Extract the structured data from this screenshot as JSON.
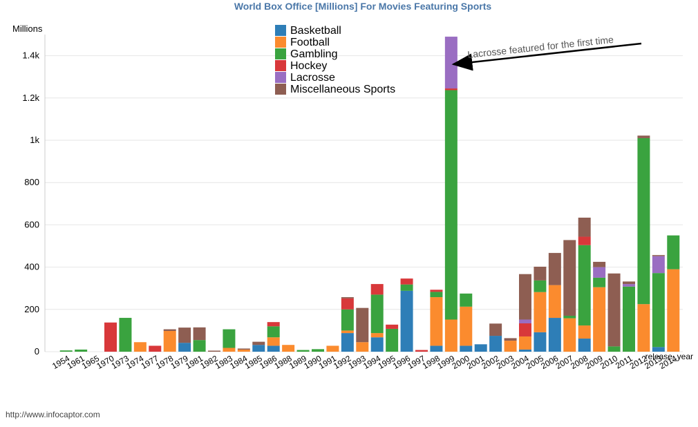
{
  "chart_data": {
    "type": "bar",
    "stacked": true,
    "title": "World Box Office [Millions] For Movies Featuring Sports",
    "ylabel": "Millions",
    "xlabel": "release_year",
    "ylim": [
      0,
      1500
    ],
    "yticks": [
      {
        "value": 0,
        "label": "0"
      },
      {
        "value": 200,
        "label": "200"
      },
      {
        "value": 400,
        "label": "400"
      },
      {
        "value": 600,
        "label": "600"
      },
      {
        "value": 800,
        "label": "800"
      },
      {
        "value": 1000,
        "label": "1k"
      },
      {
        "value": 1200,
        "label": "1.2k"
      },
      {
        "value": 1400,
        "label": "1.4k"
      }
    ],
    "grid": true,
    "legend_position": "top-center",
    "categories": [
      "1954",
      "1961",
      "1965",
      "1970",
      "1973",
      "1974",
      "1977",
      "1978",
      "1979",
      "1981",
      "1982",
      "1983",
      "1984",
      "1985",
      "1986",
      "1988",
      "1989",
      "1990",
      "1991",
      "1992",
      "1993",
      "1994",
      "1995",
      "1996",
      "1997",
      "1998",
      "1999",
      "2000",
      "2001",
      "2002",
      "2003",
      "2004",
      "2005",
      "2006",
      "2007",
      "2008",
      "2009",
      "2010",
      "2011",
      "2012",
      "2013",
      "2014"
    ],
    "series": [
      {
        "name": "Basketball",
        "color": "#2e7eb7",
        "values": [
          0,
          0,
          0,
          0,
          0,
          0,
          0,
          0,
          42,
          0,
          0,
          0,
          0,
          32,
          28,
          0,
          0,
          0,
          0,
          88,
          0,
          68,
          0,
          288,
          0,
          28,
          0,
          28,
          35,
          75,
          0,
          10,
          92,
          160,
          0,
          62,
          0,
          0,
          0,
          0,
          22,
          0
        ]
      },
      {
        "name": "Football",
        "color": "#fb8b2e",
        "values": [
          0,
          0,
          0,
          0,
          0,
          45,
          0,
          98,
          0,
          0,
          0,
          18,
          10,
          0,
          40,
          32,
          0,
          0,
          28,
          12,
          45,
          20,
          0,
          0,
          0,
          230,
          152,
          185,
          0,
          0,
          52,
          62,
          190,
          155,
          158,
          62,
          305,
          0,
          0,
          225,
          0,
          390
        ]
      },
      {
        "name": "Gambling",
        "color": "#3aa33f",
        "values": [
          6,
          10,
          0,
          0,
          160,
          0,
          0,
          0,
          0,
          55,
          0,
          88,
          0,
          0,
          52,
          0,
          8,
          12,
          0,
          100,
          0,
          182,
          108,
          30,
          0,
          25,
          1085,
          62,
          0,
          0,
          0,
          0,
          55,
          0,
          12,
          380,
          45,
          25,
          308,
          785,
          350,
          160
        ]
      },
      {
        "name": "Hockey",
        "color": "#d8383a",
        "values": [
          0,
          0,
          0,
          138,
          0,
          0,
          28,
          0,
          0,
          0,
          0,
          0,
          0,
          0,
          20,
          0,
          0,
          0,
          0,
          52,
          0,
          50,
          20,
          28,
          8,
          10,
          8,
          0,
          0,
          0,
          0,
          62,
          0,
          0,
          0,
          40,
          0,
          0,
          0,
          0,
          0,
          0
        ]
      },
      {
        "name": "Lacrosse",
        "color": "#9a6ec2",
        "values": [
          0,
          0,
          0,
          0,
          0,
          0,
          0,
          0,
          0,
          0,
          0,
          0,
          0,
          0,
          0,
          0,
          0,
          0,
          0,
          0,
          0,
          0,
          0,
          0,
          0,
          0,
          245,
          0,
          0,
          0,
          0,
          18,
          0,
          0,
          0,
          0,
          50,
          0,
          12,
          0,
          80,
          0
        ]
      },
      {
        "name": "Miscellaneous Sports",
        "color": "#8e5e52",
        "values": [
          0,
          0,
          0,
          0,
          0,
          0,
          0,
          8,
          72,
          60,
          5,
          0,
          5,
          15,
          0,
          0,
          0,
          0,
          0,
          6,
          162,
          0,
          0,
          0,
          0,
          0,
          0,
          0,
          0,
          58,
          12,
          215,
          65,
          152,
          358,
          90,
          25,
          345,
          12,
          12,
          5,
          0
        ]
      }
    ],
    "annotation": {
      "text": "Lacrosse featured for the first time",
      "target_category": "1999"
    }
  },
  "footer": {
    "url": "http://www.infocaptor.com"
  }
}
